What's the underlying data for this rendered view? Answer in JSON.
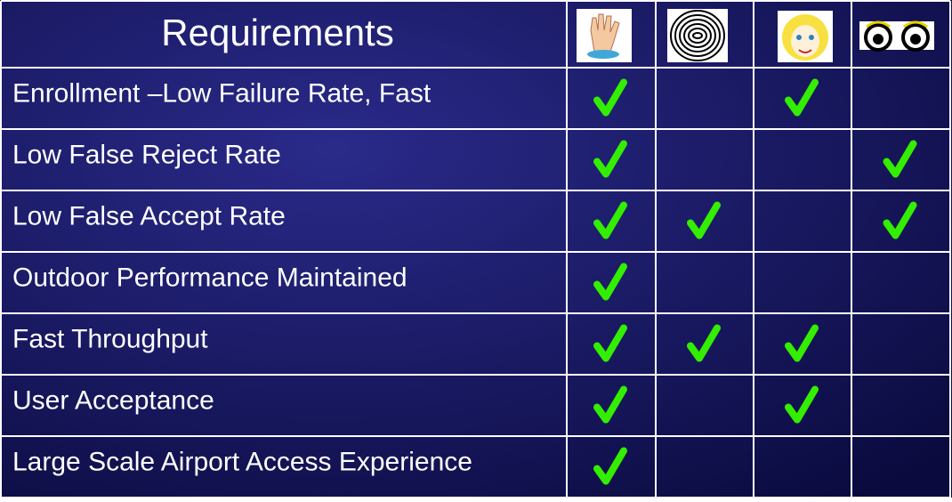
{
  "header": {
    "title": "Requirements"
  },
  "table": {
    "rows": [
      {
        "label": "Enrollment –Low Failure Rate, Fast",
        "checks": [
          true,
          false,
          true,
          false
        ]
      },
      {
        "label": "Low False Reject Rate",
        "checks": [
          true,
          false,
          false,
          true
        ]
      },
      {
        "label": "Low False Accept Rate",
        "checks": [
          true,
          true,
          false,
          true
        ]
      },
      {
        "label": "Outdoor Performance Maintained",
        "checks": [
          true,
          false,
          false,
          false
        ]
      },
      {
        "label": "Fast Throughput",
        "checks": [
          true,
          true,
          true,
          false
        ]
      },
      {
        "label": "User Acceptance",
        "checks": [
          true,
          false,
          true,
          false
        ]
      },
      {
        "label": "Large Scale Airport Access Experience",
        "checks": [
          true,
          false,
          false,
          false
        ]
      }
    ]
  }
}
